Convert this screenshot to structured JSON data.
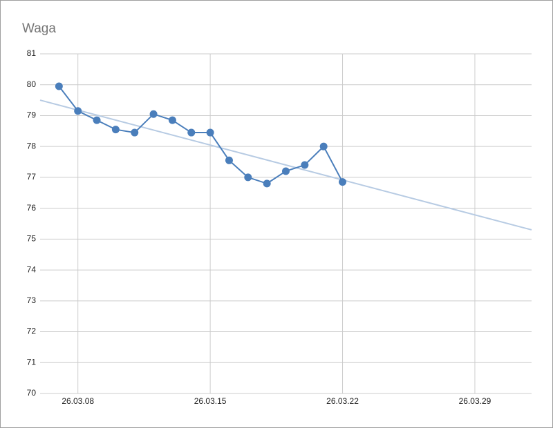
{
  "chart_data": {
    "type": "line",
    "title": "Waga",
    "x": [
      "26.03.07",
      "26.03.08",
      "26.03.09",
      "26.03.10",
      "26.03.11",
      "26.03.12",
      "26.03.13",
      "26.03.14",
      "26.03.15",
      "26.03.16",
      "26.03.17",
      "26.03.18",
      "26.03.19",
      "26.03.20",
      "26.03.21",
      "26.03.22"
    ],
    "series": [
      {
        "color": "#4a7ebb",
        "values": [
          79.95,
          79.15,
          78.85,
          78.55,
          78.45,
          79.05,
          78.85,
          78.45,
          78.45,
          77.55,
          77.0,
          76.8,
          77.2,
          77.4,
          78.0,
          76.85
        ]
      }
    ],
    "trendline": {
      "color": "#b7cbe3",
      "x": [
        "26.03.06",
        "26.04.01"
      ],
      "values": [
        79.5,
        75.3
      ]
    },
    "xlim": [
      "26.03.06",
      "26.04.01"
    ],
    "xticks": [
      "26.03.08",
      "26.03.15",
      "26.03.22",
      "26.03.29"
    ],
    "ylim": [
      70,
      81
    ],
    "yticks": [
      70,
      71,
      72,
      73,
      74,
      75,
      76,
      77,
      78,
      79,
      80,
      81
    ],
    "grid": true
  }
}
